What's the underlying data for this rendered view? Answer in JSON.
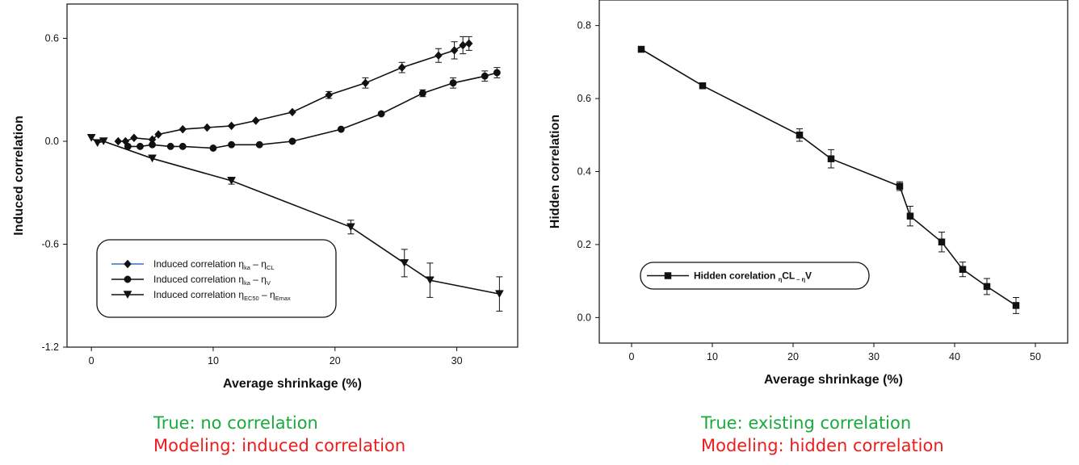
{
  "captions": {
    "left_true": "True: no correlation",
    "left_modeling": "Modeling: induced correlation",
    "right_true": "True: existing correlation",
    "right_modeling": "Modeling: hidden correlation"
  },
  "colors": {
    "true_text": "#1aaa3c",
    "modeling_text": "#ee1c1c",
    "ink": "#111111"
  },
  "chart_data": [
    {
      "type": "line",
      "title": "",
      "xlabel": "Average shrinkage (%)",
      "ylabel": "Induced correlation",
      "xlim": [
        -2,
        35
      ],
      "ylim": [
        -1.2,
        0.8
      ],
      "xticks": [
        0,
        10,
        20,
        30
      ],
      "yticks": [
        -1.2,
        -0.6,
        0.0,
        0.6
      ],
      "ytick_labels": [
        "-1.2",
        "-0.6",
        "0.0",
        "0.6"
      ],
      "grid": false,
      "legend": "bottom-left",
      "series": [
        {
          "name": "Induced correlation η_ka – η_CL",
          "legend_parts": [
            "Induced correlation η",
            "ka",
            " – η",
            "CL"
          ],
          "marker": "diamond",
          "x": [
            2.2,
            2.8,
            3.5,
            5.0,
            5.5,
            7.5,
            9.5,
            11.5,
            13.5,
            16.5,
            19.5,
            22.5,
            25.5,
            28.5,
            29.8,
            30.5,
            31.0
          ],
          "y": [
            0.0,
            0.0,
            0.02,
            0.01,
            0.04,
            0.07,
            0.08,
            0.09,
            0.12,
            0.17,
            0.27,
            0.34,
            0.43,
            0.5,
            0.53,
            0.56,
            0.57
          ],
          "err": [
            0,
            0,
            0,
            0,
            0,
            0,
            0,
            0,
            0,
            0,
            0.02,
            0.03,
            0.03,
            0.04,
            0.05,
            0.05,
            0.04
          ]
        },
        {
          "name": "Induced correlation η_ka – η_V",
          "legend_parts": [
            "Induced correlation η",
            "ka",
            " – η",
            "V"
          ],
          "marker": "circle",
          "x": [
            3.0,
            4.0,
            5.0,
            6.5,
            7.5,
            10.0,
            11.5,
            13.8,
            16.5,
            20.5,
            23.8,
            27.2,
            29.7,
            32.3,
            33.3
          ],
          "y": [
            -0.03,
            -0.03,
            -0.02,
            -0.03,
            -0.03,
            -0.04,
            -0.02,
            -0.02,
            0.0,
            0.07,
            0.16,
            0.28,
            0.34,
            0.38,
            0.4
          ],
          "err": [
            0,
            0,
            0,
            0,
            0,
            0,
            0,
            0,
            0,
            0,
            0,
            0.02,
            0.03,
            0.03,
            0.03
          ]
        },
        {
          "name": "Induced correlation η_EC50 – η_Emax",
          "legend_parts": [
            "Induced correlation η",
            "EC50",
            " – η",
            "Emax"
          ],
          "marker": "triangle-down",
          "x": [
            0.0,
            0.5,
            1.0,
            5.0,
            11.5,
            21.3,
            25.7,
            27.8,
            33.5
          ],
          "y": [
            0.02,
            -0.01,
            0.0,
            -0.1,
            -0.23,
            -0.5,
            -0.71,
            -0.81,
            -0.89
          ],
          "err": [
            0,
            0,
            0,
            0,
            0.02,
            0.04,
            0.08,
            0.1,
            0.1
          ]
        }
      ]
    },
    {
      "type": "line",
      "title": "",
      "xlabel": "Average shrinkage (%)",
      "ylabel": "Hidden correlation",
      "xlim": [
        -4,
        54
      ],
      "ylim": [
        -0.07,
        0.87
      ],
      "xticks": [
        0,
        10,
        20,
        30,
        40,
        50
      ],
      "yticks": [
        0.0,
        0.2,
        0.4,
        0.6,
        0.8
      ],
      "ytick_labels": [
        "0.0",
        "0.2",
        "0.4",
        "0.6",
        "0.8"
      ],
      "grid": false,
      "legend": "center-left",
      "series": [
        {
          "name": "Hidden corelation η_CL – η_V",
          "legend_parts": [
            "Hidden corelation ",
            "η",
            "CL",
            " – η",
            "V"
          ],
          "marker": "square",
          "x": [
            1.2,
            8.8,
            20.8,
            24.7,
            33.2,
            34.5,
            38.4,
            41.0,
            44.0,
            47.6
          ],
          "y": [
            0.735,
            0.635,
            0.5,
            0.435,
            0.36,
            0.278,
            0.207,
            0.132,
            0.085,
            0.033
          ],
          "err": [
            0.005,
            0.006,
            0.017,
            0.025,
            0.012,
            0.027,
            0.027,
            0.02,
            0.022,
            0.022
          ]
        }
      ]
    }
  ]
}
